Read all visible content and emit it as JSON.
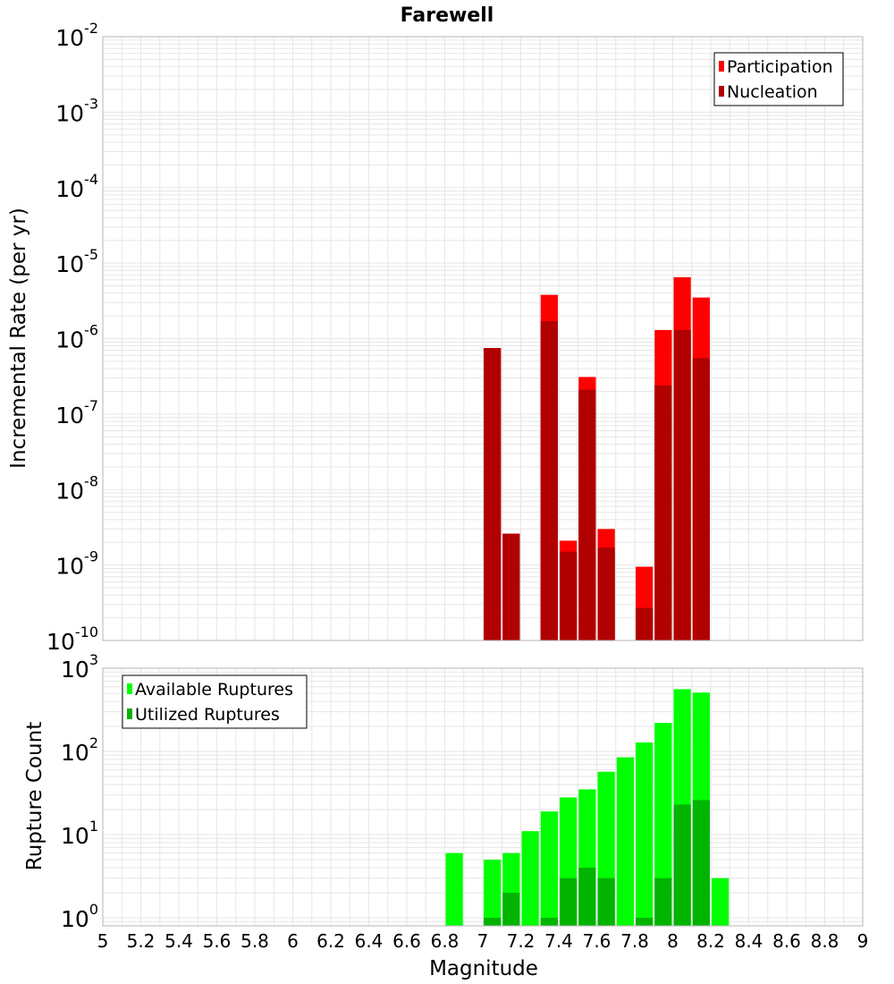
{
  "chart_data": [
    {
      "type": "bar",
      "title": "Farewell",
      "ylabel": "Incremental Rate (per yr)",
      "xlabel": "",
      "yscale": "log",
      "ylim": [
        1e-10,
        0.01
      ],
      "xlim": [
        5,
        9
      ],
      "legend_position": "top-right",
      "y_tick_labels": [
        {
          "base": "10",
          "exp": "-10"
        },
        {
          "base": "10",
          "exp": "-9"
        },
        {
          "base": "10",
          "exp": "-8"
        },
        {
          "base": "10",
          "exp": "-7"
        },
        {
          "base": "10",
          "exp": "-6"
        },
        {
          "base": "10",
          "exp": "-5"
        },
        {
          "base": "10",
          "exp": "-4"
        },
        {
          "base": "10",
          "exp": "-3"
        },
        {
          "base": "10",
          "exp": "-2"
        }
      ],
      "series": [
        {
          "name": "Participation",
          "color": "#ff0000",
          "points": [
            {
              "x": 7.05,
              "y": 7.5e-07
            },
            {
              "x": 7.15,
              "y": 2.6e-09
            },
            {
              "x": 7.35,
              "y": 3.8e-06
            },
            {
              "x": 7.45,
              "y": 2.1e-09
            },
            {
              "x": 7.55,
              "y": 3.1e-07
            },
            {
              "x": 7.65,
              "y": 3e-09
            },
            {
              "x": 7.85,
              "y": 9.5e-10
            },
            {
              "x": 7.95,
              "y": 1.3e-06
            },
            {
              "x": 8.05,
              "y": 6.5e-06
            },
            {
              "x": 8.15,
              "y": 3.5e-06
            }
          ]
        },
        {
          "name": "Nucleation",
          "color": "#b00000",
          "points": [
            {
              "x": 7.05,
              "y": 7.5e-07
            },
            {
              "x": 7.15,
              "y": 2.6e-09
            },
            {
              "x": 7.35,
              "y": 1.7e-06
            },
            {
              "x": 7.45,
              "y": 1.5e-09
            },
            {
              "x": 7.55,
              "y": 2.1e-07
            },
            {
              "x": 7.65,
              "y": 1.7e-09
            },
            {
              "x": 7.85,
              "y": 2.7e-10
            },
            {
              "x": 7.95,
              "y": 2.4e-07
            },
            {
              "x": 8.05,
              "y": 1.3e-06
            },
            {
              "x": 8.15,
              "y": 5.5e-07
            }
          ]
        }
      ]
    },
    {
      "type": "bar",
      "title": "",
      "ylabel": "Rupture Count",
      "xlabel": "Magnitude",
      "yscale": "log",
      "ylim": [
        0.8,
        1000
      ],
      "xlim": [
        5,
        9
      ],
      "legend_position": "top-left",
      "x_tick_labels": [
        "5",
        "5.2",
        "5.4",
        "5.6",
        "5.8",
        "6",
        "6.2",
        "6.4",
        "6.6",
        "6.8",
        "7",
        "7.2",
        "7.4",
        "7.6",
        "7.8",
        "8",
        "8.2",
        "8.4",
        "8.6",
        "8.8",
        "9"
      ],
      "y_tick_labels": [
        {
          "base": "10",
          "exp": "0"
        },
        {
          "base": "10",
          "exp": "1"
        },
        {
          "base": "10",
          "exp": "2"
        },
        {
          "base": "10",
          "exp": "3"
        }
      ],
      "series": [
        {
          "name": "Available Ruptures",
          "color": "#00ff00",
          "points": [
            {
              "x": 6.85,
              "y": 6
            },
            {
              "x": 7.05,
              "y": 5
            },
            {
              "x": 7.15,
              "y": 6
            },
            {
              "x": 7.25,
              "y": 11
            },
            {
              "x": 7.35,
              "y": 19
            },
            {
              "x": 7.45,
              "y": 28
            },
            {
              "x": 7.55,
              "y": 35
            },
            {
              "x": 7.65,
              "y": 57
            },
            {
              "x": 7.75,
              "y": 85
            },
            {
              "x": 7.85,
              "y": 128
            },
            {
              "x": 7.95,
              "y": 220
            },
            {
              "x": 8.05,
              "y": 560
            },
            {
              "x": 8.15,
              "y": 510
            },
            {
              "x": 8.25,
              "y": 3
            }
          ]
        },
        {
          "name": "Utilized Ruptures",
          "color": "#00b400",
          "points": [
            {
              "x": 7.05,
              "y": 1
            },
            {
              "x": 7.15,
              "y": 2
            },
            {
              "x": 7.35,
              "y": 1
            },
            {
              "x": 7.45,
              "y": 3
            },
            {
              "x": 7.55,
              "y": 4
            },
            {
              "x": 7.65,
              "y": 3
            },
            {
              "x": 7.85,
              "y": 1
            },
            {
              "x": 7.95,
              "y": 3
            },
            {
              "x": 8.05,
              "y": 23
            },
            {
              "x": 8.15,
              "y": 26
            }
          ]
        }
      ]
    }
  ]
}
